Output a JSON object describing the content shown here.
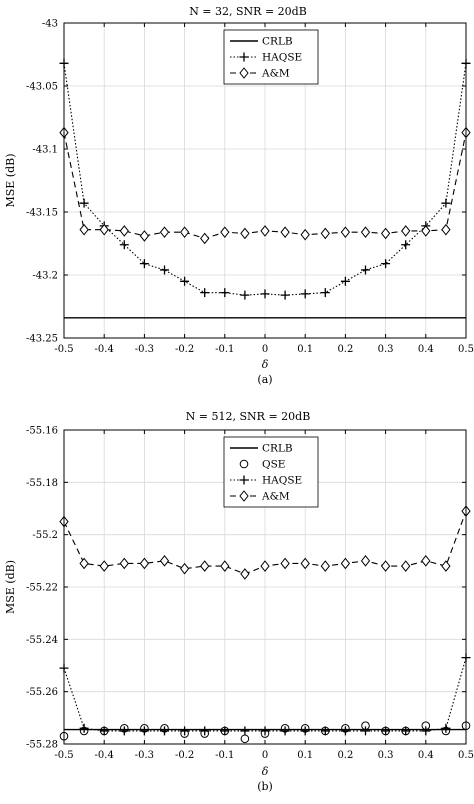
{
  "chart_data": [
    {
      "type": "line",
      "title": "N = 32, SNR = 20dB",
      "xlabel": "δ",
      "ylabel": "MSE (dB)",
      "caption": "(a)",
      "xlim": [
        -0.5,
        0.5
      ],
      "ylim": [
        -43.25,
        -43.0
      ],
      "xticks": [
        -0.5,
        -0.4,
        -0.3,
        -0.2,
        -0.1,
        0,
        0.1,
        0.2,
        0.3,
        0.4,
        0.5
      ],
      "xtick_labels": [
        "-0.5",
        "-0.4",
        "-0.3",
        "-0.2",
        "-0.1",
        "0",
        "0.1",
        "0.2",
        "0.3",
        "0.4",
        "0.5"
      ],
      "yticks": [
        -43.0,
        -43.05,
        -43.1,
        -43.15,
        -43.2,
        -43.25
      ],
      "ytick_labels": [
        "-43",
        "-43.05",
        "-43.1",
        "-43.15",
        "-43.2",
        "-43.25"
      ],
      "grid": true,
      "legend_position": "top-center",
      "x": [
        -0.5,
        -0.45,
        -0.4,
        -0.35,
        -0.3,
        -0.25,
        -0.2,
        -0.15,
        -0.1,
        -0.05,
        0,
        0.05,
        0.1,
        0.15,
        0.2,
        0.25,
        0.3,
        0.35,
        0.4,
        0.45,
        0.5
      ],
      "series": [
        {
          "name": "CRLB",
          "style": "solid",
          "marker": "none",
          "values": [
            -43.234,
            -43.234,
            -43.234,
            -43.234,
            -43.234,
            -43.234,
            -43.234,
            -43.234,
            -43.234,
            -43.234,
            -43.234,
            -43.234,
            -43.234,
            -43.234,
            -43.234,
            -43.234,
            -43.234,
            -43.234,
            -43.234,
            -43.234,
            -43.234
          ]
        },
        {
          "name": "HAQSE",
          "style": "dotted",
          "marker": "plus",
          "values": [
            -43.032,
            -43.143,
            -43.161,
            -43.176,
            -43.191,
            -43.196,
            -43.205,
            -43.214,
            -43.214,
            -43.216,
            -43.215,
            -43.216,
            -43.215,
            -43.214,
            -43.205,
            -43.196,
            -43.191,
            -43.176,
            -43.161,
            -43.143,
            -43.032
          ]
        },
        {
          "name": "A&M",
          "style": "dashed",
          "marker": "diamond",
          "values": [
            -43.087,
            -43.164,
            -43.164,
            -43.165,
            -43.169,
            -43.166,
            -43.166,
            -43.171,
            -43.166,
            -43.167,
            -43.165,
            -43.166,
            -43.168,
            -43.167,
            -43.166,
            -43.166,
            -43.167,
            -43.165,
            -43.165,
            -43.164,
            -43.087
          ]
        }
      ]
    },
    {
      "type": "line",
      "title": "N = 512, SNR = 20dB",
      "xlabel": "δ",
      "ylabel": "MSE (dB)",
      "caption": "(b)",
      "xlim": [
        -0.5,
        0.5
      ],
      "ylim": [
        -55.28,
        -55.16
      ],
      "xticks": [
        -0.5,
        -0.4,
        -0.3,
        -0.2,
        -0.1,
        0,
        0.1,
        0.2,
        0.3,
        0.4,
        0.5
      ],
      "xtick_labels": [
        "-0.5",
        "-0.4",
        "-0.3",
        "-0.2",
        "-0.1",
        "0",
        "0.1",
        "0.2",
        "0.3",
        "0.4",
        "0.5"
      ],
      "yticks": [
        -55.16,
        -55.18,
        -55.2,
        -55.22,
        -55.24,
        -55.26,
        -55.28
      ],
      "ytick_labels": [
        "-55.16",
        "-55.18",
        "-55.2",
        "-55.22",
        "-55.24",
        "-55.26",
        "-55.28"
      ],
      "grid": true,
      "legend_position": "top-center",
      "x": [
        -0.5,
        -0.45,
        -0.4,
        -0.35,
        -0.3,
        -0.25,
        -0.2,
        -0.15,
        -0.1,
        -0.05,
        0,
        0.05,
        0.1,
        0.15,
        0.2,
        0.25,
        0.3,
        0.35,
        0.4,
        0.45,
        0.5
      ],
      "series": [
        {
          "name": "CRLB",
          "style": "solid",
          "marker": "none",
          "values": [
            -55.2745,
            -55.2745,
            -55.2745,
            -55.2745,
            -55.2745,
            -55.2745,
            -55.2745,
            -55.2745,
            -55.2745,
            -55.2745,
            -55.2745,
            -55.2745,
            -55.2745,
            -55.2745,
            -55.2745,
            -55.2745,
            -55.2745,
            -55.2745,
            -55.2745,
            -55.2745,
            -55.2745
          ]
        },
        {
          "name": "QSE",
          "style": "none",
          "marker": "circle",
          "values": [
            -55.277,
            -55.275,
            -55.275,
            -55.274,
            -55.274,
            -55.274,
            -55.276,
            -55.276,
            -55.275,
            -55.278,
            -55.276,
            -55.274,
            -55.274,
            -55.275,
            -55.274,
            -55.273,
            -55.275,
            -55.275,
            -55.273,
            -55.275,
            -55.273
          ]
        },
        {
          "name": "HAQSE",
          "style": "dotted",
          "marker": "plus",
          "values": [
            -55.251,
            -55.274,
            -55.275,
            -55.275,
            -55.275,
            -55.275,
            -55.275,
            -55.275,
            -55.275,
            -55.275,
            -55.275,
            -55.275,
            -55.275,
            -55.275,
            -55.275,
            -55.275,
            -55.275,
            -55.275,
            -55.275,
            -55.274,
            -55.247
          ]
        },
        {
          "name": "A&M",
          "style": "dashed",
          "marker": "diamond",
          "values": [
            -55.195,
            -55.211,
            -55.212,
            -55.211,
            -55.211,
            -55.21,
            -55.213,
            -55.212,
            -55.212,
            -55.215,
            -55.212,
            -55.211,
            -55.211,
            -55.212,
            -55.211,
            -55.21,
            -55.212,
            -55.212,
            -55.21,
            -55.212,
            -55.191
          ]
        }
      ]
    }
  ]
}
